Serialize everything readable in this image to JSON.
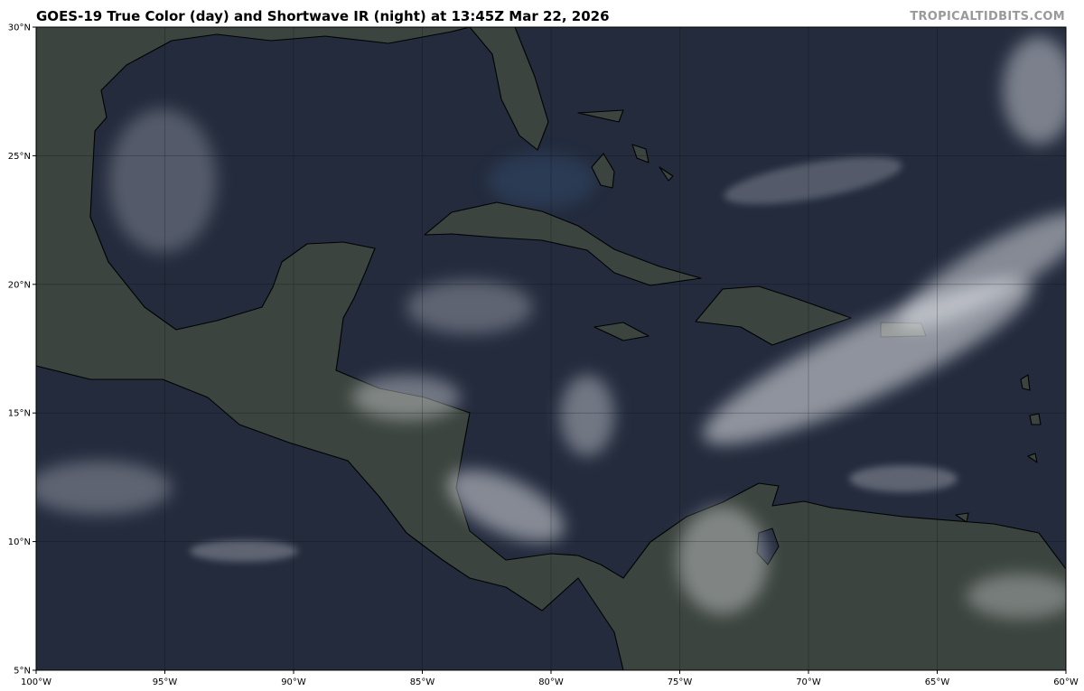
{
  "header": {
    "title": "GOES-19 True Color (day) and Shortwave IR (night) at 13:45Z Mar 22, 2026",
    "brand": "TROPICALTIDBITS.COM"
  },
  "map": {
    "projection": "equirectangular",
    "lon_range": [
      -100,
      -60
    ],
    "lat_range": [
      5,
      30
    ],
    "gridlines": true,
    "colors": {
      "ocean": "#232b3d",
      "land": "#3c443f",
      "coastline": "#000000",
      "clouds": "#e6e8ec"
    },
    "lon_ticks": [
      {
        "value": -100,
        "label": "100°W"
      },
      {
        "value": -95,
        "label": "95°W"
      },
      {
        "value": -90,
        "label": "90°W"
      },
      {
        "value": -85,
        "label": "85°W"
      },
      {
        "value": -80,
        "label": "80°W"
      },
      {
        "value": -75,
        "label": "75°W"
      },
      {
        "value": -70,
        "label": "70°W"
      },
      {
        "value": -65,
        "label": "65°W"
      },
      {
        "value": -60,
        "label": "60°W"
      }
    ],
    "lat_ticks": [
      {
        "value": 30,
        "label": "30°N"
      },
      {
        "value": 25,
        "label": "25°N"
      },
      {
        "value": 20,
        "label": "20°N"
      },
      {
        "value": 15,
        "label": "15°N"
      },
      {
        "value": 10,
        "label": "10°N"
      },
      {
        "value": 5,
        "label": "5°N"
      }
    ]
  }
}
